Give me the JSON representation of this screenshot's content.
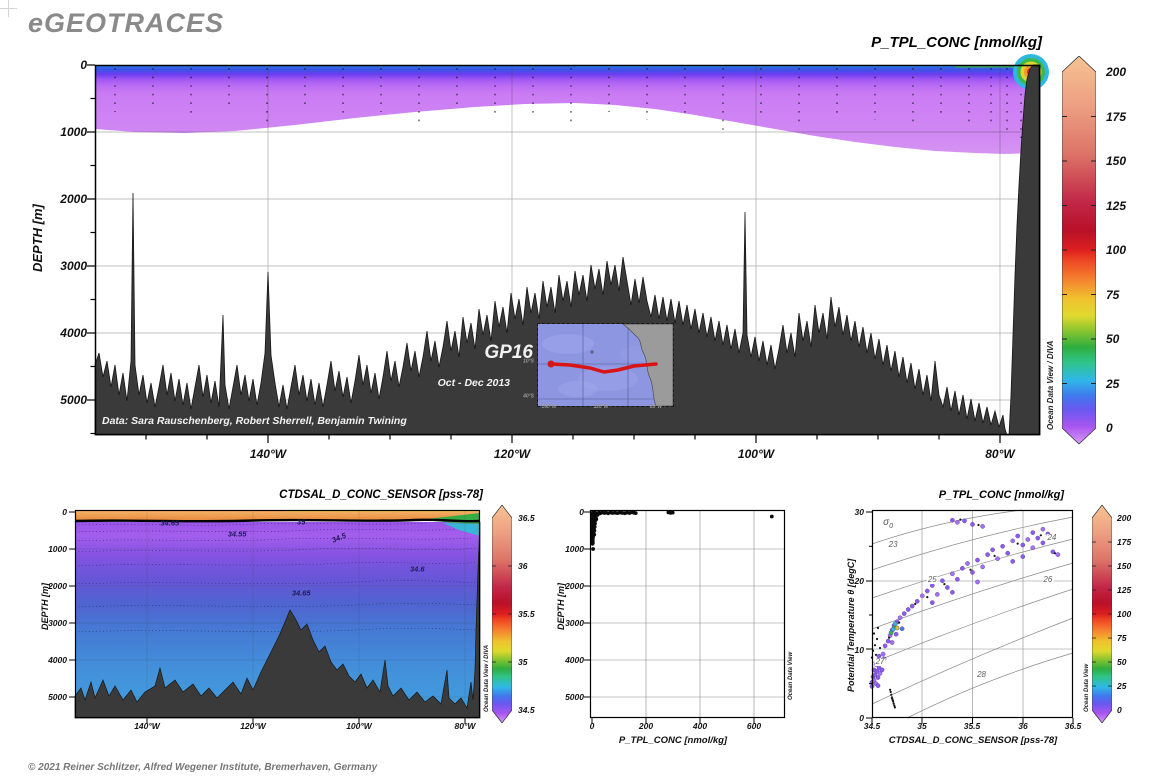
{
  "page": {
    "brand": "eGEOTRACES",
    "footer": "© 2021 Reiner Schlitzer, Alfred Wegener Institute, Bremerhaven, Germany"
  },
  "chart_data": [
    {
      "id": "main-phosphorus-section",
      "type": "heatmap",
      "title": "P_TPL_CONC [nmol/kg]",
      "ylabel": "DEPTH [m]",
      "yticks": [
        "0",
        "1000",
        "2000",
        "3000",
        "4000",
        "5000"
      ],
      "xticks": [
        "140°W",
        "120°W",
        "100°W",
        "80°W"
      ],
      "ylim": [
        0,
        5520
      ],
      "grid": true,
      "colorbar_ticks": [
        "200",
        "175",
        "150",
        "125",
        "100",
        "75",
        "50",
        "25",
        "0"
      ],
      "colorbar_range": [
        0,
        200
      ],
      "colorbar_credit": "Ocean Data View / DIVA",
      "credit": "Data: Sara Rauschenberg, Robert Sherrell, Benjamin Twining",
      "cruise": "GP16",
      "cruise_dates": "Oct - Dec 2013",
      "inset": {
        "xlabels": [
          "160°W",
          "120°W",
          "80°W"
        ],
        "ylabels": [
          "10°S",
          "40°S"
        ]
      },
      "description": "Particulate phosphorus section along GP16 (152°W–77°W): low values 0–25 nmol/kg (violet band) in the upper ~600–1300 m, no data below; coastal maximum up to ~200 nmol/kg at the Peru margin near 80°W."
    },
    {
      "id": "salinity-section",
      "type": "heatmap",
      "title": "CTDSAL_D_CONC_SENSOR [pss-78]",
      "ylabel": "DEPTH [m]",
      "yticks": [
        "0",
        "1000",
        "2000",
        "3000",
        "4000",
        "5000"
      ],
      "xticks": [
        "140°W",
        "120°W",
        "100°W",
        "80°W"
      ],
      "ylim": [
        0,
        5400
      ],
      "colorbar_ticks": [
        "36.5",
        "36",
        "35.5",
        "35",
        "34.5"
      ],
      "colorbar_range": [
        34.5,
        36.5
      ],
      "colorbar_credit": "Ocean Data View / DIVA",
      "contour_labels": [
        {
          "t": "34.65",
          "lon": 135.7,
          "depth": 300
        },
        {
          "t": "34.55",
          "lon": 123.0,
          "depth": 600
        },
        {
          "t": "35",
          "lon": 110.9,
          "depth": 260
        },
        {
          "t": "34.5",
          "lon": 103.8,
          "depth": 700,
          "rot": -22
        },
        {
          "t": "34.6",
          "lon": 89.0,
          "depth": 1540
        },
        {
          "t": "34.65",
          "lon": 110.9,
          "depth": 2190
        }
      ],
      "description": "Salinity section: salty surface layer >36 (orange), 35 isohaline as thick black contour, salinity minimum 34.5–34.6 (violet) at intermediate depth, deep water ~34.65–34.7 (blue)."
    },
    {
      "id": "phosphorus-depth-profile",
      "type": "scatter",
      "xlabel": "P_TPL_CONC [nmol/kg]",
      "ylabel": "DEPTH [m]",
      "xticks": [
        "0",
        "200",
        "400",
        "600"
      ],
      "yticks": [
        "0",
        "1000",
        "2000",
        "3000",
        "4000",
        "5000"
      ],
      "xlim": [
        0,
        715
      ],
      "ylim": [
        0,
        5620
      ],
      "grid": true,
      "credit": "Ocean Data View",
      "points": [
        [
          3,
          15
        ],
        [
          5,
          40
        ],
        [
          2,
          65
        ],
        [
          6,
          90
        ],
        [
          3,
          115
        ],
        [
          7,
          140
        ],
        [
          4,
          165
        ],
        [
          2,
          190
        ],
        [
          6,
          215
        ],
        [
          3,
          240
        ],
        [
          8,
          265
        ],
        [
          4,
          290
        ],
        [
          2,
          315
        ],
        [
          6,
          340
        ],
        [
          3,
          365
        ],
        [
          7,
          390
        ],
        [
          4,
          415
        ],
        [
          2,
          440
        ],
        [
          5,
          465
        ],
        [
          3,
          490
        ],
        [
          6,
          515
        ],
        [
          2,
          540
        ],
        [
          4,
          565
        ],
        [
          3,
          590
        ],
        [
          5,
          615
        ],
        [
          2,
          640
        ],
        [
          4,
          665
        ],
        [
          2,
          690
        ],
        [
          3,
          715
        ],
        [
          2,
          745
        ],
        [
          3,
          775
        ],
        [
          2,
          805
        ],
        [
          3,
          835
        ],
        [
          2,
          860
        ],
        [
          10,
          20
        ],
        [
          13,
          50
        ],
        [
          11,
          85
        ],
        [
          15,
          30
        ],
        [
          12,
          120
        ],
        [
          17,
          65
        ],
        [
          14,
          155
        ],
        [
          19,
          40
        ],
        [
          16,
          195
        ],
        [
          21,
          75
        ],
        [
          12,
          230
        ],
        [
          9,
          270
        ],
        [
          11,
          310
        ],
        [
          8,
          355
        ],
        [
          10,
          400
        ],
        [
          7,
          450
        ],
        [
          9,
          500
        ],
        [
          6,
          555
        ],
        [
          8,
          610
        ],
        [
          26,
          18
        ],
        [
          31,
          35
        ],
        [
          38,
          12
        ],
        [
          45,
          28
        ],
        [
          52,
          20
        ],
        [
          60,
          34
        ],
        [
          68,
          14
        ],
        [
          76,
          26
        ],
        [
          85,
          18
        ],
        [
          94,
          30
        ],
        [
          103,
          15
        ],
        [
          112,
          24
        ],
        [
          121,
          33
        ],
        [
          130,
          16
        ],
        [
          139,
          26
        ],
        [
          147,
          12
        ],
        [
          155,
          22
        ],
        [
          162,
          30
        ],
        [
          283,
          10
        ],
        [
          291,
          24
        ],
        [
          299,
          16
        ],
        [
          666,
          122
        ],
        [
          4,
          1000
        ]
      ]
    },
    {
      "id": "ts-diagram",
      "type": "scatter",
      "title": "P_TPL_CONC [nmol/kg]",
      "xlabel": "CTDSAL_D_CONC_SENSOR [pss-78]",
      "ylabel": "Potential Temperature θ [degC]",
      "xticks": [
        "34.5",
        "35",
        "35.5",
        "36",
        "36.5"
      ],
      "yticks": [
        "30",
        "20",
        "10",
        "0"
      ],
      "xlim": [
        34.5,
        36.5
      ],
      "ylim": [
        0,
        30
      ],
      "grid": true,
      "colorbar_ticks": [
        "200",
        "175",
        "150",
        "125",
        "100",
        "75",
        "50",
        "25",
        "0"
      ],
      "colorbar_range": [
        0,
        200
      ],
      "credit": "Ocean Data View",
      "isopycnals": [
        {
          "t": "σ0",
          "s": 34.66,
          "temp": 28.3,
          "big": 1
        },
        {
          "t": "23",
          "s": 34.71,
          "temp": 25.2
        },
        {
          "t": "24",
          "s": 36.29,
          "temp": 26.2
        },
        {
          "t": "25",
          "s": 35.1,
          "temp": 20.1
        },
        {
          "t": "26",
          "s": 36.25,
          "temp": 20.1
        },
        {
          "t": "27",
          "s": 34.58,
          "temp": 8.2
        },
        {
          "t": "28",
          "s": 35.59,
          "temp": 6.3
        }
      ],
      "palette": [
        "#161616",
        "#8f5af0",
        "#a770f5",
        "#4a7ae8",
        "#3cb04a",
        "#35b8d8",
        "#ddc22f"
      ],
      "points": [
        [
          34.68,
          4.1,
          0
        ],
        [
          34.686,
          3.8,
          0
        ],
        [
          34.692,
          3.4,
          0
        ],
        [
          34.698,
          3.0,
          0
        ],
        [
          34.704,
          2.7,
          0
        ],
        [
          34.71,
          2.4,
          0
        ],
        [
          34.716,
          2.1,
          0
        ],
        [
          34.722,
          1.8,
          0
        ],
        [
          34.728,
          1.55,
          0
        ],
        [
          34.699,
          2.9,
          0
        ],
        [
          34.707,
          2.55,
          0
        ],
        [
          34.5,
          5.2,
          1
        ],
        [
          34.51,
          6,
          1
        ],
        [
          34.52,
          5.5,
          2
        ],
        [
          34.52,
          7,
          1
        ],
        [
          34.53,
          6.3,
          1
        ],
        [
          34.54,
          5,
          2
        ],
        [
          34.54,
          7.8,
          1
        ],
        [
          34.55,
          6.8,
          1
        ],
        [
          34.55,
          8.4,
          2
        ],
        [
          34.56,
          5.9,
          1
        ],
        [
          34.57,
          7.3,
          1
        ],
        [
          34.57,
          9,
          1
        ],
        [
          34.58,
          6.5,
          2
        ],
        [
          34.59,
          8,
          1
        ],
        [
          34.6,
          7,
          1
        ],
        [
          34.61,
          9.3,
          2
        ],
        [
          34.62,
          8.6,
          1
        ],
        [
          34.56,
          4.7,
          1
        ],
        [
          34.5,
          4.6,
          1
        ],
        [
          34.51,
          9.8,
          0
        ],
        [
          34.53,
          10.6,
          0
        ],
        [
          34.55,
          11.5,
          0
        ],
        [
          34.5,
          8.8,
          0
        ],
        [
          34.52,
          12.3,
          0
        ],
        [
          34.56,
          13.1,
          0
        ],
        [
          34.58,
          10.2,
          0
        ],
        [
          34.54,
          9.2,
          0
        ],
        [
          34.63,
          10.5,
          1
        ],
        [
          34.66,
          11.2,
          1
        ],
        [
          34.68,
          12,
          2
        ],
        [
          34.7,
          12.8,
          1
        ],
        [
          34.72,
          13.5,
          1
        ],
        [
          34.75,
          14,
          1
        ],
        [
          34.78,
          14.6,
          2
        ],
        [
          34.82,
          15.2,
          1
        ],
        [
          34.86,
          15.8,
          1
        ],
        [
          34.9,
          16.3,
          1
        ],
        [
          34.8,
          13,
          3
        ],
        [
          34.74,
          12.2,
          1
        ],
        [
          34.7,
          11,
          2
        ],
        [
          34.72,
          13.2,
          4
        ],
        [
          34.69,
          12.4,
          4
        ],
        [
          34.71,
          12.9,
          5
        ],
        [
          34.73,
          13.7,
          5
        ],
        [
          34.75,
          13.1,
          6
        ],
        [
          34.67,
          11.7,
          0
        ],
        [
          34.77,
          13.9,
          0
        ],
        [
          34.95,
          17,
          1
        ],
        [
          35,
          17.8,
          2
        ],
        [
          35.05,
          18.5,
          1
        ],
        [
          35.1,
          19.3,
          1
        ],
        [
          35.15,
          18,
          2
        ],
        [
          35.2,
          20,
          1
        ],
        [
          35.25,
          19,
          1
        ],
        [
          35.3,
          21,
          2
        ],
        [
          35.35,
          20.2,
          1
        ],
        [
          35.4,
          21.8,
          1
        ],
        [
          35.45,
          22.5,
          2
        ],
        [
          35.5,
          21.2,
          1
        ],
        [
          35.55,
          23,
          1
        ],
        [
          35.6,
          22,
          2
        ],
        [
          35.65,
          23.8,
          1
        ],
        [
          35.7,
          24.5,
          1
        ],
        [
          35.75,
          23.2,
          2
        ],
        [
          35.8,
          25,
          1
        ],
        [
          35.85,
          24,
          1
        ],
        [
          35.9,
          25.8,
          2
        ],
        [
          35.95,
          26.5,
          1
        ],
        [
          36,
          25.2,
          1
        ],
        [
          36.05,
          26,
          2
        ],
        [
          36.1,
          27,
          1
        ],
        [
          36.15,
          26.2,
          1
        ],
        [
          36.2,
          27.5,
          2
        ],
        [
          36.25,
          26.8,
          1
        ],
        [
          36.3,
          24.2,
          1
        ],
        [
          36.35,
          23.8,
          2
        ],
        [
          36,
          23.5,
          1
        ],
        [
          35.9,
          22.8,
          1
        ],
        [
          35.55,
          19.8,
          2
        ],
        [
          35.3,
          18.3,
          1
        ],
        [
          35.1,
          16.8,
          1
        ],
        [
          36.1,
          24.8,
          2
        ],
        [
          36.2,
          25.5,
          1
        ],
        [
          35.3,
          28.8,
          1
        ],
        [
          35.35,
          28.5,
          2
        ],
        [
          35.42,
          28.7,
          1
        ],
        [
          35.5,
          28.2,
          1
        ],
        [
          35.6,
          27.9,
          2
        ],
        [
          35.05,
          17.6,
          0
        ],
        [
          35.22,
          19.5,
          0
        ],
        [
          35.48,
          21.6,
          0
        ],
        [
          35.72,
          23.6,
          0
        ],
        [
          35.95,
          25.4,
          0
        ],
        [
          36.18,
          26.6,
          0
        ],
        [
          35.38,
          28.9,
          0
        ],
        [
          35.56,
          28.1,
          0
        ],
        [
          34.93,
          16.6,
          0
        ],
        [
          36.32,
          24.0,
          0
        ]
      ]
    }
  ]
}
